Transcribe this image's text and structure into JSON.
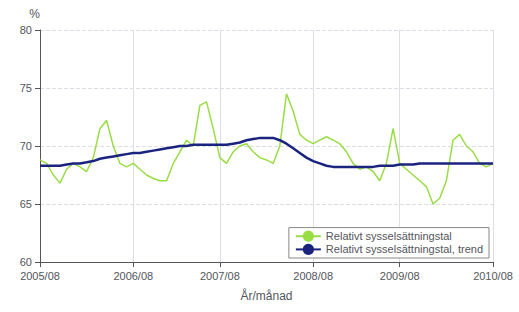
{
  "chart_data": {
    "type": "line",
    "xlabel": "År/månad",
    "ylabel": "%",
    "categories": [
      "2005/08",
      null,
      null,
      null,
      null,
      null,
      null,
      null,
      null,
      null,
      null,
      null,
      null,
      null,
      "2006/08",
      null,
      null,
      null,
      null,
      null,
      null,
      null,
      null,
      null,
      null,
      null,
      null,
      "2007/08",
      null,
      null,
      null,
      null,
      null,
      null,
      null,
      null,
      null,
      null,
      null,
      null,
      null,
      "2008/08",
      null,
      null,
      null,
      null,
      null,
      null,
      null,
      null,
      null,
      null,
      null,
      null,
      "2009/08",
      null,
      null,
      null,
      null,
      null,
      null,
      null,
      null,
      null,
      null,
      null,
      null,
      null,
      "2010/08"
    ],
    "series": [
      {
        "name": "Relativt sysselsättningstal",
        "color": "#99dd44",
        "values": [
          68.8,
          68.5,
          67.5,
          66.8,
          68.0,
          68.5,
          68.2,
          67.8,
          69.0,
          71.5,
          72.2,
          70.0,
          68.5,
          68.2,
          68.5,
          68.0,
          67.5,
          67.2,
          67.0,
          67.0,
          68.5,
          69.5,
          70.5,
          70.0,
          73.5,
          73.8,
          71.5,
          69.0,
          68.5,
          69.5,
          70.0,
          70.2,
          69.5,
          69.0,
          68.8,
          68.5,
          70.0,
          74.5,
          73.0,
          71.0,
          70.5,
          70.2,
          70.5,
          70.8,
          70.5,
          70.2,
          69.5,
          68.5,
          68.0,
          68.2,
          67.8,
          67.0,
          68.5,
          71.5,
          68.5,
          68.0,
          67.5,
          67.0,
          66.5,
          65.0,
          65.5,
          67.0,
          70.5,
          71.0,
          70.0,
          69.5,
          68.5,
          68.2,
          68.5
        ]
      },
      {
        "name": "Relativt sysselsättningstal, trend",
        "color": "#1a237e",
        "values": [
          68.3,
          68.3,
          68.3,
          68.3,
          68.4,
          68.5,
          68.5,
          68.6,
          68.7,
          68.9,
          69.0,
          69.1,
          69.2,
          69.3,
          69.4,
          69.4,
          69.5,
          69.6,
          69.7,
          69.8,
          69.9,
          70.0,
          70.0,
          70.1,
          70.1,
          70.1,
          70.1,
          70.1,
          70.1,
          70.2,
          70.3,
          70.5,
          70.6,
          70.7,
          70.7,
          70.7,
          70.5,
          70.2,
          69.8,
          69.4,
          69.0,
          68.7,
          68.5,
          68.3,
          68.2,
          68.2,
          68.2,
          68.2,
          68.2,
          68.2,
          68.2,
          68.3,
          68.3,
          68.3,
          68.4,
          68.4,
          68.4,
          68.5,
          68.5,
          68.5,
          68.5,
          68.5,
          68.5,
          68.5,
          68.5,
          68.5,
          68.5,
          68.5,
          68.5
        ]
      }
    ],
    "ylim": [
      60,
      80
    ],
    "yticks": [
      60,
      65,
      70,
      75,
      80
    ],
    "grid": true,
    "legend": "lower right"
  }
}
